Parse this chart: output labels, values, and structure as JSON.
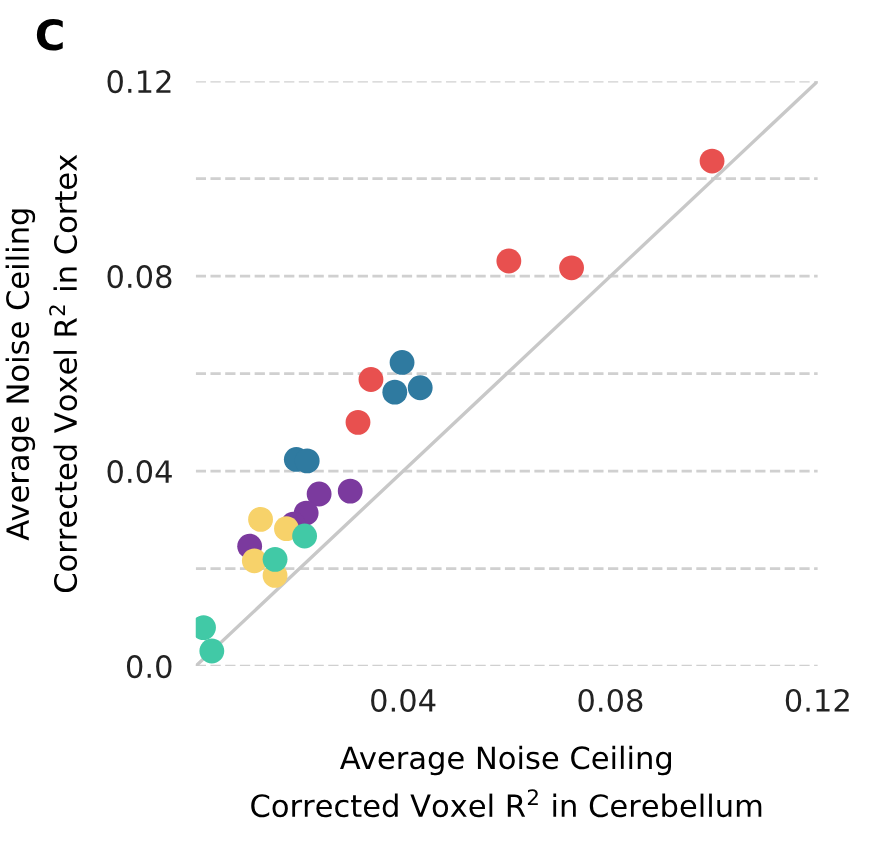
{
  "chart_data": {
    "type": "scatter",
    "title": "C",
    "xlabel": "Average Noise Ceiling\nCorrected Voxel R$^{2}$ in Cerebellum",
    "ylabel": "Average Noise Ceiling\nCorrected Voxel R$^{2}$ in Cortex",
    "xlim": [
      0,
      0.12
    ],
    "ylim": [
      0,
      0.12
    ],
    "xticks": [
      0.04,
      0.08,
      0.12
    ],
    "yticks": [
      {
        "value": 0,
        "label": "0.0"
      },
      {
        "value": 0.02,
        "label": null
      },
      0.04,
      {
        "value": 0.06,
        "label": null
      },
      0.08,
      {
        "value": 0.1,
        "label": null
      },
      0.12
    ],
    "grid": "y",
    "marker": "circle",
    "series": [
      {
        "type": "line",
        "color": "#c8c8c8",
        "x": [
          0,
          0.12
        ],
        "values": [
          0,
          0.12
        ],
        "marker": "none"
      },
      {
        "color": "#e8504f",
        "x": [
          0.0996,
          0.0604,
          0.0725,
          0.0338,
          0.0313
        ],
        "values": [
          0.1036,
          0.0831,
          0.0817,
          0.0588,
          0.05
        ]
      },
      {
        "color": "#2f7aa0",
        "x": [
          0.0398,
          0.0384,
          0.0433,
          0.0194,
          0.0215
        ],
        "values": [
          0.0623,
          0.0562,
          0.0571,
          0.0424,
          0.0421
        ]
      },
      {
        "color": "#7b3a9e",
        "x": [
          0.0298,
          0.0238,
          0.0213,
          0.0188,
          0.0104
        ],
        "values": [
          0.0359,
          0.0353,
          0.0314,
          0.0291,
          0.0246
        ]
      },
      {
        "color": "#f7d26a",
        "x": [
          0.0125,
          0.0175,
          0.0113,
          0.0153
        ],
        "values": [
          0.0301,
          0.0282,
          0.0216,
          0.0186
        ]
      },
      {
        "color": "#41c9a6",
        "x": [
          0.021,
          0.0153,
          0.0015,
          0.0031
        ],
        "values": [
          0.0267,
          0.0219,
          0.0079,
          0.0031
        ]
      }
    ]
  }
}
